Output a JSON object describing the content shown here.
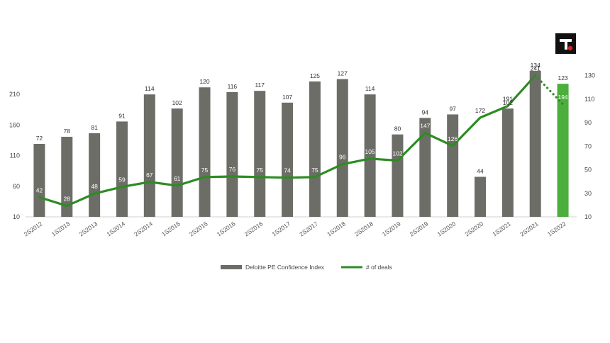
{
  "colors": {
    "bar": "#6d6d67",
    "bar_highlight": "#4cae3c",
    "line": "#2e8b23",
    "logo_bg": "#111111",
    "logo_dot": "#e02020"
  },
  "logo": {
    "icon": "brand-logo-icon"
  },
  "chart_data": {
    "type": "bar",
    "categories": [
      "2S2012",
      "1S2013",
      "2S2013",
      "1S2014",
      "2S2014",
      "1S2015",
      "2S2015",
      "1S2016",
      "2S2016",
      "1S2017",
      "2S2017",
      "1S2018",
      "2S2018",
      "1S2019",
      "2S2019",
      "1S2020",
      "2S2020",
      "1S2021",
      "2S2021",
      "1S2022"
    ],
    "series": [
      {
        "name": "Deloitte PE Confidence Index",
        "kind": "bar",
        "axis": "right",
        "values": [
          72,
          78,
          81,
          91,
          114,
          102,
          120,
          116,
          117,
          107,
          125,
          127,
          114,
          80,
          94,
          97,
          44,
          102,
          134,
          123
        ],
        "highlight_last": true
      },
      {
        "name": "# of deals",
        "kind": "line",
        "axis": "left",
        "values": [
          42,
          28,
          48,
          59,
          67,
          61,
          75,
          76,
          75,
          74,
          75,
          96,
          105,
          102,
          147,
          126,
          172,
          191,
          241,
          194
        ],
        "last_segment_dotted": true
      }
    ],
    "left_axis": {
      "ticks": [
        10,
        60,
        110,
        160,
        210
      ],
      "min": 10,
      "max": 260
    },
    "right_axis": {
      "ticks": [
        10,
        30,
        50,
        70,
        90,
        110,
        130
      ],
      "min": 10,
      "max": 140
    },
    "grid": false,
    "legend": "bottom-center"
  }
}
